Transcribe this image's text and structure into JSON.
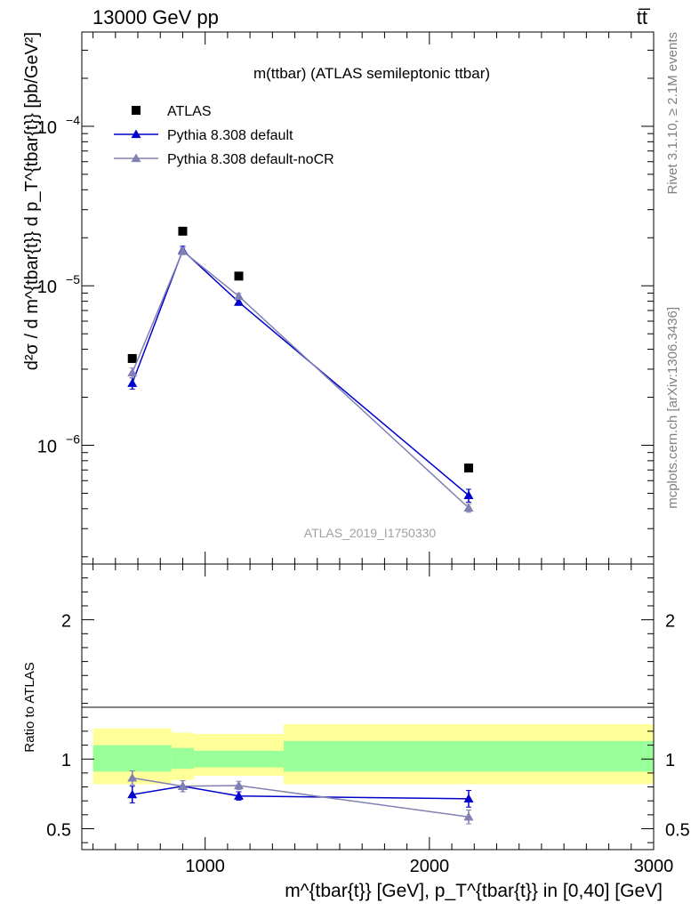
{
  "header": {
    "left": "13000 GeV pp",
    "right": "tt̅"
  },
  "side_labels": {
    "rivet": "Rivet 3.1.10, ≥ 2.1M events",
    "mcplots": "mcplots.cern.ch [arXiv:1306.3436]"
  },
  "chart_data": [
    {
      "type": "scatter",
      "panel": "main",
      "title": "m(ttbar) (ATLAS semileptonic ttbar)",
      "annotation": "ATLAS_2019_I1750330",
      "ylabel": "d²σ / d m^{tbar{t}} d p_T^{tbar{t}} [pb/GeV²]",
      "yscale": "log",
      "xlim": [
        450,
        3000
      ],
      "ylim": [
        1.8e-07,
        0.00039
      ],
      "yticks": [
        {
          "value": 1e-06,
          "label": "10",
          "exp": "−6"
        },
        {
          "value": 1e-05,
          "label": "10",
          "exp": "−5"
        },
        {
          "value": 0.0001,
          "label": "10",
          "exp": "−4"
        }
      ],
      "legend_position": "top-left",
      "series": [
        {
          "name": "ATLAS",
          "marker": "square",
          "color": "#000000",
          "x": [
            675,
            900,
            1150,
            2175
          ],
          "y": [
            3.5e-06,
            2.2e-05,
            1.15e-05,
            7.2e-07
          ]
        },
        {
          "name": "Pythia 8.308 default",
          "marker": "triangle",
          "color": "#0000cc",
          "line": true,
          "x": [
            675,
            900,
            1150,
            2175
          ],
          "y": [
            2.45e-06,
            1.67e-05,
            7.9e-06,
            4.85e-07
          ],
          "err_lo": [
            2.25e-06,
            1.57e-05,
            7.55e-06,
            4.4e-07
          ],
          "err_hi": [
            2.65e-06,
            1.77e-05,
            8.25e-06,
            5.3e-07
          ]
        },
        {
          "name": "Pythia 8.308 default-noCR",
          "marker": "triangle",
          "color": "#8080b3",
          "line": true,
          "x": [
            675,
            900,
            1150,
            2175
          ],
          "y": [
            2.85e-06,
            1.65e-05,
            8.6e-06,
            4.05e-07
          ],
          "err_lo": [
            2.65e-06,
            1.57e-05,
            8.25e-06,
            3.8e-07
          ],
          "err_hi": [
            3.05e-06,
            1.73e-05,
            8.95e-06,
            4.3e-07
          ]
        }
      ]
    },
    {
      "type": "scatter",
      "panel": "ratio",
      "ylabel": "Ratio to ATLAS",
      "xlabel": "m^{tbar{t}} [GeV], p_T^{tbar{t}} in [0,40] [GeV]",
      "xlim": [
        450,
        3000
      ],
      "ylim": [
        0.35,
        2.4
      ],
      "xticks": [
        {
          "value": 1000,
          "label": "1000"
        },
        {
          "value": 2000,
          "label": "2000"
        },
        {
          "value": 3000,
          "label": "3000"
        }
      ],
      "yticks": [
        {
          "value": 0.5,
          "label": "0.5"
        },
        {
          "value": 1,
          "label": "1"
        },
        {
          "value": 2,
          "label": "2"
        }
      ],
      "bands": [
        {
          "x": [
            500,
            850
          ],
          "yellow": [
            0.82,
            1.22
          ],
          "green": [
            0.91,
            1.1
          ]
        },
        {
          "x": [
            850,
            950
          ],
          "yellow": [
            0.85,
            1.19
          ],
          "green": [
            0.93,
            1.08
          ]
        },
        {
          "x": [
            950,
            1350
          ],
          "yellow": [
            0.88,
            1.18
          ],
          "green": [
            0.94,
            1.06
          ]
        },
        {
          "x": [
            1350,
            3000
          ],
          "yellow": [
            0.82,
            1.25
          ],
          "green": [
            0.91,
            1.13
          ]
        }
      ],
      "colors": {
        "yellow": "#ffff99",
        "green": "#99ff99"
      },
      "series": [
        {
          "name": "Pythia 8.308 default",
          "marker": "triangle",
          "color": "#0000cc",
          "line": true,
          "x": [
            675,
            900,
            1150,
            2175
          ],
          "y": [
            0.745,
            0.805,
            0.735,
            0.715
          ],
          "err_lo": [
            0.685,
            0.765,
            0.705,
            0.655
          ],
          "err_hi": [
            0.805,
            0.845,
            0.765,
            0.775
          ]
        },
        {
          "name": "Pythia 8.308 default-noCR",
          "marker": "triangle",
          "color": "#8080b3",
          "line": true,
          "x": [
            675,
            900,
            1150,
            2175
          ],
          "y": [
            0.865,
            0.805,
            0.81,
            0.585
          ],
          "err_lo": [
            0.815,
            0.765,
            0.78,
            0.535
          ],
          "err_hi": [
            0.915,
            0.845,
            0.84,
            0.635
          ]
        }
      ]
    }
  ]
}
